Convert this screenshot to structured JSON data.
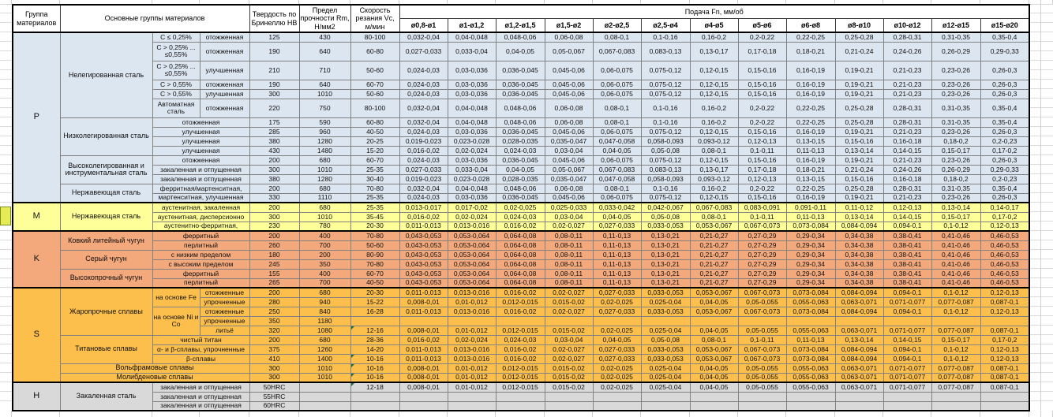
{
  "header": {
    "group": "Группа материалов",
    "materials": "Основные группы материалов",
    "hardness": "Твердость по Бринеллю НВ",
    "strength": "Предел прочности Rm, Н/мм2",
    "speed": "Скорость резания Vc, м/мин",
    "feed": "Подача Fn, мм/об",
    "diameters": [
      "ø0,8-ø1",
      "ø1-ø1,2",
      "ø1,2-ø1,5",
      "ø1,5-ø2",
      "ø2-ø2,5",
      "ø2,5-ø4",
      "ø4-ø5",
      "ø5-ø6",
      "ø6-ø8",
      "ø8-ø10",
      "ø10-ø12",
      "ø12-ø15",
      "ø15-ø20"
    ]
  },
  "feed_patterns": {
    "A": [
      "0,032-0,04",
      "0,04-0,048",
      "0,048-0,06",
      "0,06-0,08",
      "0,08-0,1",
      "0,1-0,16",
      "0,16-0,2",
      "0,2-0,22",
      "0,22-0,25",
      "0,25-0,28",
      "0,28-0,31",
      "0,31-0,35",
      "0,35-0,4"
    ],
    "B": [
      "0,027-0,033",
      "0,033-0,04",
      "0,04-0,05",
      "0,05-0,067",
      "0,067-0,083",
      "0,083-0,13",
      "0,13-0,17",
      "0,17-0,18",
      "0,18-0,21",
      "0,21-0,24",
      "0,24-0,26",
      "0,26-0,29",
      "0,29-0,33"
    ],
    "C": [
      "0,024-0,03",
      "0,03-0,036",
      "0,036-0,045",
      "0,045-0,06",
      "0,06-0,075",
      "0,075-0,12",
      "0,12-0,15",
      "0,15-0,16",
      "0,16-0,19",
      "0,19-0,21",
      "0,21-0,23",
      "0,23-0,26",
      "0,26-0,3"
    ],
    "D": [
      "0,019-0,023",
      "0,023-0,028",
      "0,028-0,035",
      "0,035-0,047",
      "0,047-0,058",
      "0,058-0,093",
      "0,093-0,12",
      "0,12-0,13",
      "0,13-0,15",
      "0,15-0,16",
      "0,16-0,18",
      "0,18-0,2",
      "0,2-0,23"
    ],
    "E": [
      "0,016-0,02",
      "0,02-0,024",
      "0,024-0,03",
      "0,03-0,04",
      "0,04-0,05",
      "0,05-0,08",
      "0,08-0,1",
      "0,1-0,11",
      "0,11-0,13",
      "0,13-0,14",
      "0,14-0,15",
      "0,15-0,17",
      "0,17-0,2"
    ],
    "F": [
      "0,011-0,013",
      "0,013-0,016",
      "0,016-0,02",
      "0,02-0,027",
      "0,027-0,033",
      "0,033-0,053",
      "0,053-0,067",
      "0,067-0,073",
      "0,073-0,084",
      "0,084-0,094",
      "0,094-0,1",
      "0,1-0,12",
      "0,12-0,13"
    ],
    "M1": [
      "0,013-0,017",
      "0,017-0,02",
      "0,02-0,025",
      "0,025-0,033",
      "0,033-0,042",
      "0,042-0,067",
      "0,067-0,083",
      "0,083-0,091",
      "0,091-0,11",
      "0,11-0,12",
      "0,12-0,13",
      "0,13-0,14",
      "0,14-0,17"
    ],
    "G": [
      "0,043-0,053",
      "0,053-0,064",
      "0,064-0,08",
      "0,08-0,11",
      "0,11-0,13",
      "0,13-0,21",
      "0,21-0,27",
      "0,27-0,29",
      "0,29-0,34",
      "0,34-0,38",
      "0,38-0,41",
      "0,41-0,46",
      "0,46-0,53"
    ],
    "H": [
      "0,008-0,01",
      "0,01-0,012",
      "0,012-0,015",
      "0,015-0,02",
      "0,02-0,025",
      "0,025-0,04",
      "0,04-0,05",
      "0,05-0,055",
      "0,055-0,063",
      "0,063-0,071",
      "0,071-0,077",
      "0,077-0,087",
      "0,087-0,1"
    ],
    "EMPTY": [
      "",
      "",
      "",
      "",
      "",
      "",
      "",
      "",
      "",
      "",
      "",
      "",
      ""
    ]
  },
  "groups": [
    {
      "letter": "P",
      "color": "#dce6f1",
      "families": [
        {
          "name": "Нелегированная сталь",
          "type": "split",
          "rows": [
            {
              "c1": "C ≤ 0,25%",
              "c2": "отожженная",
              "hb": "125",
              "rm": "430",
              "vc": "80-100",
              "feeds": "A",
              "h": 1
            },
            {
              "c1": "C > 0,25% ... ≤0,55%",
              "c2": "отожженная",
              "hb": "190",
              "rm": "640",
              "vc": "60-80",
              "feeds": "B",
              "h": 2
            },
            {
              "c1": "C > 0,25% ... ≤0,55%",
              "c2": "улучшенная",
              "hb": "210",
              "rm": "710",
              "vc": "50-60",
              "feeds": "C",
              "h": 2
            },
            {
              "c1": "C > 0,55%",
              "c2": "отожженная",
              "hb": "190",
              "rm": "640",
              "vc": "60-70",
              "feeds": "C",
              "h": 1
            },
            {
              "c1": "C > 0,55%",
              "c2": "улучшенная",
              "hb": "300",
              "rm": "1010",
              "vc": "50-60",
              "feeds": "C",
              "h": 1
            },
            {
              "c1": "Автоматная сталь",
              "c2": "отожженная",
              "hb": "220",
              "rm": "750",
              "vc": "80-100",
              "feeds": "A",
              "h": 2
            }
          ]
        },
        {
          "name": "Низколегированная сталь",
          "type": "merged",
          "rows": [
            {
              "c": "отожженная",
              "hb": "175",
              "rm": "590",
              "vc": "60-80",
              "feeds": "A"
            },
            {
              "c": "улучшенная",
              "hb": "285",
              "rm": "960",
              "vc": "40-50",
              "feeds": "C"
            },
            {
              "c": "улучшенная",
              "hb": "380",
              "rm": "1280",
              "vc": "20-25",
              "feeds": "D"
            },
            {
              "c": "улучшенная",
              "hb": "430",
              "rm": "1480",
              "vc": "15-20",
              "feeds": "E"
            }
          ]
        },
        {
          "name": "Высоколегированная и инструментальная сталь",
          "type": "merged",
          "rows": [
            {
              "c": "отожженная",
              "hb": "200",
              "rm": "680",
              "vc": "60-70",
              "feeds": "C"
            },
            {
              "c": "закаленная и отпущенная",
              "hb": "300",
              "rm": "1010",
              "vc": "25-35",
              "feeds": "B"
            },
            {
              "c": "закаленная и отпущенная",
              "hb": "380",
              "rm": "1280",
              "vc": "30-40",
              "feeds": "D"
            }
          ]
        },
        {
          "name": "Нержавеющая сталь",
          "type": "merged",
          "rows": [
            {
              "c": "ферритная/мартенситная,",
              "hb": "200",
              "rm": "680",
              "vc": "70-80",
              "feeds": "A"
            },
            {
              "c": "мартенситная, улучшенная",
              "hb": "330",
              "rm": "1110",
              "vc": "25-35",
              "feeds": "C"
            }
          ]
        }
      ]
    },
    {
      "letter": "M",
      "color": "#ffff99",
      "families": [
        {
          "name": "Нержавеющая сталь",
          "type": "merged",
          "rows": [
            {
              "c": "аустенитная, закаленная",
              "hb": "200",
              "rm": "680",
              "vc": "25-35",
              "feeds": "M1"
            },
            {
              "c": "аустенитная, дисперсионно",
              "hb": "300",
              "rm": "1010",
              "vc": "35-45",
              "feeds": "E"
            },
            {
              "c": "аустенитно-ферритная,",
              "hb": "230",
              "rm": "780",
              "vc": "20-30",
              "feeds": "F"
            }
          ]
        }
      ]
    },
    {
      "letter": "K",
      "color": "#f4a97d",
      "families": [
        {
          "name": "Ковкий литейный чугун",
          "type": "merged",
          "rows": [
            {
              "c": "ферритный",
              "hb": "200",
              "rm": "400",
              "vc": "70-80",
              "feeds": "G"
            },
            {
              "c": "перлитный",
              "hb": "260",
              "rm": "700",
              "vc": "50-60",
              "feeds": "G"
            }
          ]
        },
        {
          "name": "Серый чугун",
          "type": "merged",
          "rows": [
            {
              "c": "с низким пределом",
              "hb": "180",
              "rm": "200",
              "vc": "80-90",
              "feeds": "G"
            },
            {
              "c": "с высоким пределом",
              "hb": "245",
              "rm": "350",
              "vc": "70-80",
              "feeds": "G"
            }
          ]
        },
        {
          "name": "Высокопрочный чугун",
          "type": "merged",
          "rows": [
            {
              "c": "ферритный",
              "hb": "155",
              "rm": "400",
              "vc": "60-70",
              "feeds": "G"
            },
            {
              "c": "перлитный",
              "hb": "265",
              "rm": "700",
              "vc": "40-50",
              "feeds": "G"
            }
          ]
        }
      ]
    },
    {
      "letter": "S",
      "color": "#fcbf4b",
      "families": [
        {
          "name": "Жаропрочные сплавы",
          "type": "split2",
          "rows": [
            {
              "c1": "на основе Fe",
              "c1_span": 2,
              "c2": "отожженные",
              "hb": "200",
              "rm": "680",
              "vc": "20-30",
              "feeds": "F"
            },
            {
              "c2": "упрочненные",
              "hb": "280",
              "rm": "940",
              "vc": "15-22",
              "feeds": "H"
            },
            {
              "c1": "на основе Ni и Со",
              "c1_span": 3,
              "c2": "отожженные",
              "hb": "250",
              "rm": "840",
              "vc": "16-28",
              "feeds": "F"
            },
            {
              "c2": "упрочненные",
              "hb": "350",
              "rm": "1180",
              "vc": "",
              "feeds": "EMPTY"
            },
            {
              "c2": "литьё",
              "hb": "320",
              "rm": "1080",
              "vc": "12-16",
              "vc_flag": true,
              "feeds": "H"
            }
          ]
        },
        {
          "name": "Титановые сплавы",
          "type": "merged",
          "rows": [
            {
              "c": "чистый титан",
              "hb": "200",
              "rm": "680",
              "vc": "28-36",
              "feeds": "E"
            },
            {
              "c": "α- и β-сплавы, упрочненные",
              "hb": "375",
              "rm": "1260",
              "vc": "14-20",
              "feeds": "F"
            },
            {
              "c": "β-сплавы",
              "hb": "410",
              "rm": "1400",
              "vc": "10-16",
              "vc_flag": true,
              "feeds": "F"
            }
          ]
        },
        {
          "name": "Вольфрамовые сплавы",
          "type": "full",
          "rows": [
            {
              "hb": "300",
              "rm": "1010",
              "vc": "10-16",
              "vc_flag": true,
              "feeds": "H"
            }
          ]
        },
        {
          "name": "Молибденовые сплавы",
          "type": "full",
          "rows": [
            {
              "hb": "300",
              "rm": "1010",
              "vc": "10-16",
              "vc_flag": true,
              "feeds": "H"
            }
          ]
        }
      ]
    },
    {
      "letter": "H",
      "color": "#d9d9d9",
      "families": [
        {
          "name": "Закаленная сталь",
          "type": "merged",
          "rows": [
            {
              "c": "закаленная и отпущенная",
              "hb": "50HRC",
              "rm": "",
              "vc": "12-18",
              "vc_flag": true,
              "feeds": "H"
            },
            {
              "c": "закаленная и отпущенная",
              "hb": "55HRC",
              "rm": "",
              "vc": "",
              "feeds": "EMPTY"
            },
            {
              "c": "закаленная и отпущенная",
              "hb": "60HRC",
              "rm": "",
              "vc": "",
              "feeds": "EMPTY"
            }
          ]
        }
      ]
    }
  ]
}
